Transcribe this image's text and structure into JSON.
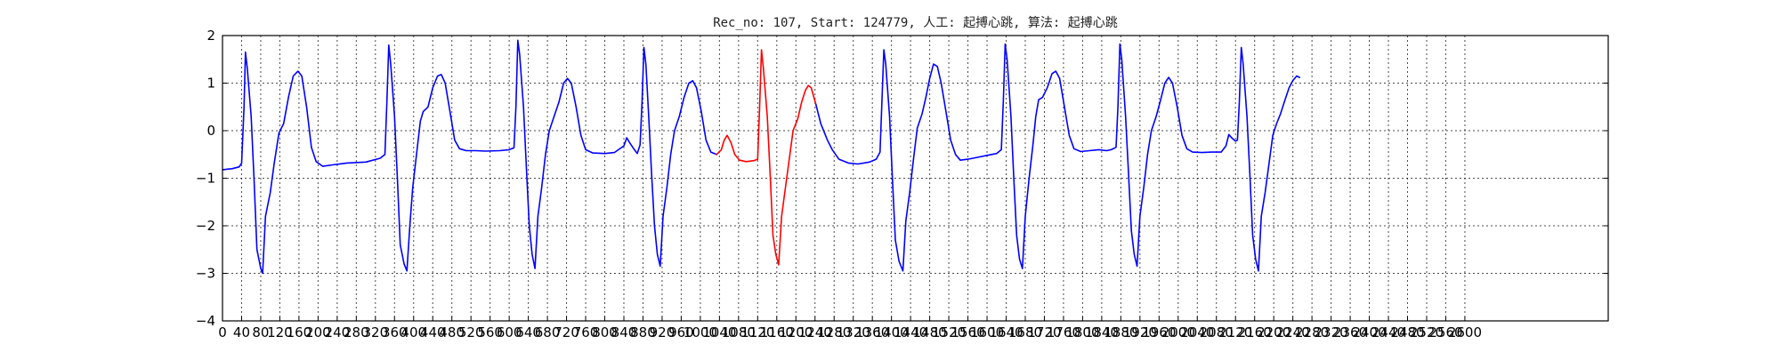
{
  "chart_data": {
    "type": "line",
    "title": "Rec_no: 107, Start: 124779, 人工: 起搏心跳, 算法: 起搏心跳",
    "xlabel": "",
    "ylabel": "",
    "xlim": [
      0,
      2900
    ],
    "ylim": [
      -4,
      2
    ],
    "grid": true,
    "x_ticks": [
      0,
      40,
      80,
      120,
      160,
      200,
      240,
      280,
      320,
      360,
      400,
      440,
      480,
      520,
      560,
      600,
      640,
      680,
      720,
      760,
      800,
      840,
      880,
      920,
      960,
      1000,
      1040,
      1080,
      1120,
      1160,
      1200,
      1240,
      1280,
      1320,
      1360,
      1400,
      1440,
      1480,
      1520,
      1560,
      1600,
      1640,
      1680,
      1720,
      1760,
      1800,
      1840,
      1880,
      1920,
      1960,
      2000,
      2040,
      2080,
      2120,
      2160,
      2200,
      2240,
      2280,
      2320,
      2360,
      2400,
      2440,
      2480,
      2520,
      2560,
      2600
    ],
    "y_ticks": [
      -4,
      -3,
      -2,
      -1,
      0,
      1,
      2
    ],
    "series": [
      {
        "color": "#0000ff",
        "segment": "before",
        "points": [
          [
            0,
            -0.82
          ],
          [
            20,
            -0.8
          ],
          [
            35,
            -0.76
          ],
          [
            40,
            -0.68
          ],
          [
            45,
            0.5
          ],
          [
            48,
            1.65
          ],
          [
            52,
            1.3
          ],
          [
            60,
            0.3
          ],
          [
            66,
            -1.0
          ],
          [
            72,
            -2.5
          ],
          [
            80,
            -2.9
          ],
          [
            84,
            -3.0
          ],
          [
            90,
            -1.8
          ],
          [
            100,
            -1.3
          ],
          [
            108,
            -0.7
          ],
          [
            118,
            -0.05
          ],
          [
            128,
            0.15
          ],
          [
            138,
            0.7
          ],
          [
            148,
            1.15
          ],
          [
            158,
            1.25
          ],
          [
            166,
            1.15
          ],
          [
            176,
            0.5
          ],
          [
            186,
            -0.35
          ],
          [
            196,
            -0.65
          ],
          [
            210,
            -0.75
          ],
          [
            230,
            -0.72
          ],
          [
            260,
            -0.68
          ],
          [
            300,
            -0.66
          ],
          [
            330,
            -0.58
          ],
          [
            340,
            -0.5
          ],
          [
            344,
            0.6
          ],
          [
            348,
            1.8
          ],
          [
            352,
            1.4
          ],
          [
            360,
            0.3
          ],
          [
            366,
            -1.0
          ],
          [
            372,
            -2.4
          ],
          [
            380,
            -2.8
          ],
          [
            386,
            -2.95
          ],
          [
            392,
            -2.0
          ],
          [
            398,
            -1.2
          ],
          [
            406,
            -0.5
          ],
          [
            414,
            0.2
          ],
          [
            420,
            0.4
          ],
          [
            430,
            0.5
          ],
          [
            440,
            0.9
          ],
          [
            450,
            1.15
          ],
          [
            458,
            1.18
          ],
          [
            466,
            1.0
          ],
          [
            476,
            0.4
          ],
          [
            486,
            -0.2
          ],
          [
            496,
            -0.38
          ],
          [
            510,
            -0.42
          ],
          [
            530,
            -0.42
          ],
          [
            550,
            -0.43
          ],
          [
            580,
            -0.42
          ],
          [
            600,
            -0.4
          ],
          [
            610,
            -0.36
          ],
          [
            614,
            0.5
          ],
          [
            618,
            1.9
          ],
          [
            622,
            1.6
          ],
          [
            630,
            0.5
          ],
          [
            636,
            -0.8
          ],
          [
            642,
            -2.0
          ],
          [
            648,
            -2.6
          ],
          [
            654,
            -2.9
          ],
          [
            660,
            -1.8
          ],
          [
            668,
            -1.2
          ],
          [
            676,
            -0.5
          ],
          [
            684,
            0.0
          ],
          [
            694,
            0.3
          ],
          [
            704,
            0.6
          ],
          [
            714,
            1.0
          ],
          [
            722,
            1.1
          ],
          [
            730,
            1.0
          ],
          [
            740,
            0.5
          ],
          [
            750,
            -0.1
          ],
          [
            760,
            -0.4
          ],
          [
            775,
            -0.47
          ],
          [
            800,
            -0.48
          ],
          [
            820,
            -0.46
          ],
          [
            840,
            -0.32
          ],
          [
            846,
            -0.15
          ],
          [
            852,
            -0.25
          ],
          [
            862,
            -0.4
          ],
          [
            868,
            -0.48
          ],
          [
            874,
            -0.3
          ],
          [
            878,
            0.6
          ],
          [
            882,
            1.75
          ],
          [
            886,
            1.4
          ],
          [
            892,
            0.3
          ],
          [
            898,
            -0.9
          ],
          [
            904,
            -2.0
          ],
          [
            910,
            -2.6
          ],
          [
            916,
            -2.85
          ],
          [
            922,
            -1.8
          ],
          [
            930,
            -1.2
          ],
          [
            938,
            -0.5
          ],
          [
            946,
            0.0
          ],
          [
            956,
            0.3
          ],
          [
            966,
            0.7
          ],
          [
            976,
            1.0
          ],
          [
            984,
            1.05
          ],
          [
            992,
            0.9
          ],
          [
            1002,
            0.4
          ],
          [
            1012,
            -0.2
          ],
          [
            1022,
            -0.45
          ],
          [
            1034,
            -0.5
          ]
        ]
      },
      {
        "color": "#ff0000",
        "segment": "beat",
        "points": [
          [
            1034,
            -0.5
          ],
          [
            1044,
            -0.4
          ],
          [
            1050,
            -0.2
          ],
          [
            1056,
            -0.1
          ],
          [
            1064,
            -0.25
          ],
          [
            1072,
            -0.5
          ],
          [
            1082,
            -0.62
          ],
          [
            1096,
            -0.65
          ],
          [
            1112,
            -0.63
          ],
          [
            1120,
            -0.6
          ],
          [
            1124,
            0.5
          ],
          [
            1128,
            1.7
          ],
          [
            1132,
            1.3
          ],
          [
            1140,
            0.3
          ],
          [
            1146,
            -0.9
          ],
          [
            1152,
            -2.2
          ],
          [
            1158,
            -2.6
          ],
          [
            1164,
            -2.82
          ],
          [
            1170,
            -1.8
          ],
          [
            1178,
            -1.2
          ],
          [
            1186,
            -0.6
          ],
          [
            1194,
            0.0
          ],
          [
            1204,
            0.25
          ],
          [
            1212,
            0.6
          ],
          [
            1220,
            0.85
          ],
          [
            1226,
            0.95
          ],
          [
            1232,
            0.9
          ],
          [
            1242,
            0.55
          ]
        ]
      },
      {
        "color": "#0000ff",
        "segment": "after",
        "points": [
          [
            1242,
            0.55
          ],
          [
            1252,
            0.15
          ],
          [
            1260,
            -0.05
          ],
          [
            1266,
            -0.2
          ],
          [
            1276,
            -0.4
          ],
          [
            1290,
            -0.6
          ],
          [
            1310,
            -0.68
          ],
          [
            1330,
            -0.7
          ],
          [
            1354,
            -0.66
          ],
          [
            1368,
            -0.6
          ],
          [
            1376,
            -0.45
          ],
          [
            1380,
            0.6
          ],
          [
            1384,
            1.7
          ],
          [
            1388,
            1.4
          ],
          [
            1396,
            0.3
          ],
          [
            1402,
            -1.0
          ],
          [
            1408,
            -2.3
          ],
          [
            1416,
            -2.75
          ],
          [
            1424,
            -2.95
          ],
          [
            1430,
            -1.9
          ],
          [
            1438,
            -1.3
          ],
          [
            1446,
            -0.6
          ],
          [
            1454,
            0.05
          ],
          [
            1464,
            0.35
          ],
          [
            1472,
            0.7
          ],
          [
            1480,
            1.1
          ],
          [
            1488,
            1.4
          ],
          [
            1496,
            1.35
          ],
          [
            1504,
            1.0
          ],
          [
            1514,
            0.4
          ],
          [
            1524,
            -0.2
          ],
          [
            1534,
            -0.5
          ],
          [
            1544,
            -0.62
          ],
          [
            1560,
            -0.6
          ],
          [
            1580,
            -0.56
          ],
          [
            1600,
            -0.52
          ],
          [
            1620,
            -0.48
          ],
          [
            1630,
            -0.4
          ],
          [
            1634,
            0.6
          ],
          [
            1638,
            1.82
          ],
          [
            1642,
            1.5
          ],
          [
            1650,
            0.3
          ],
          [
            1656,
            -1.0
          ],
          [
            1662,
            -2.2
          ],
          [
            1668,
            -2.7
          ],
          [
            1674,
            -2.9
          ],
          [
            1680,
            -1.8
          ],
          [
            1688,
            -1.0
          ],
          [
            1696,
            -0.3
          ],
          [
            1702,
            0.3
          ],
          [
            1708,
            0.65
          ],
          [
            1716,
            0.7
          ],
          [
            1726,
            0.9
          ],
          [
            1736,
            1.2
          ],
          [
            1744,
            1.25
          ],
          [
            1752,
            1.1
          ],
          [
            1762,
            0.5
          ],
          [
            1772,
            -0.1
          ],
          [
            1782,
            -0.38
          ],
          [
            1796,
            -0.44
          ],
          [
            1814,
            -0.42
          ],
          [
            1834,
            -0.4
          ],
          [
            1850,
            -0.42
          ],
          [
            1860,
            -0.4
          ],
          [
            1870,
            -0.35
          ],
          [
            1874,
            0.5
          ],
          [
            1878,
            1.82
          ],
          [
            1882,
            1.5
          ],
          [
            1890,
            0.3
          ],
          [
            1896,
            -0.9
          ],
          [
            1902,
            -2.1
          ],
          [
            1908,
            -2.6
          ],
          [
            1914,
            -2.85
          ],
          [
            1920,
            -1.8
          ],
          [
            1928,
            -1.2
          ],
          [
            1936,
            -0.5
          ],
          [
            1944,
            0.0
          ],
          [
            1954,
            0.3
          ],
          [
            1962,
            0.6
          ],
          [
            1972,
            1.0
          ],
          [
            1980,
            1.12
          ],
          [
            1988,
            1.0
          ],
          [
            1998,
            0.5
          ],
          [
            2008,
            -0.1
          ],
          [
            2018,
            -0.38
          ],
          [
            2030,
            -0.45
          ],
          [
            2050,
            -0.46
          ],
          [
            2070,
            -0.45
          ],
          [
            2090,
            -0.45
          ],
          [
            2100,
            -0.32
          ],
          [
            2106,
            -0.08
          ],
          [
            2112,
            -0.15
          ],
          [
            2120,
            -0.22
          ],
          [
            2124,
            -0.2
          ],
          [
            2128,
            0.6
          ],
          [
            2132,
            1.75
          ],
          [
            2136,
            1.4
          ],
          [
            2144,
            0.3
          ],
          [
            2150,
            -0.9
          ],
          [
            2156,
            -2.2
          ],
          [
            2162,
            -2.7
          ],
          [
            2168,
            -2.95
          ],
          [
            2174,
            -1.8
          ],
          [
            2182,
            -1.3
          ],
          [
            2190,
            -0.7
          ],
          [
            2198,
            -0.1
          ],
          [
            2206,
            0.15
          ],
          [
            2214,
            0.35
          ],
          [
            2222,
            0.6
          ],
          [
            2232,
            0.9
          ],
          [
            2240,
            1.05
          ],
          [
            2248,
            1.15
          ],
          [
            2254,
            1.12
          ]
        ]
      }
    ]
  }
}
